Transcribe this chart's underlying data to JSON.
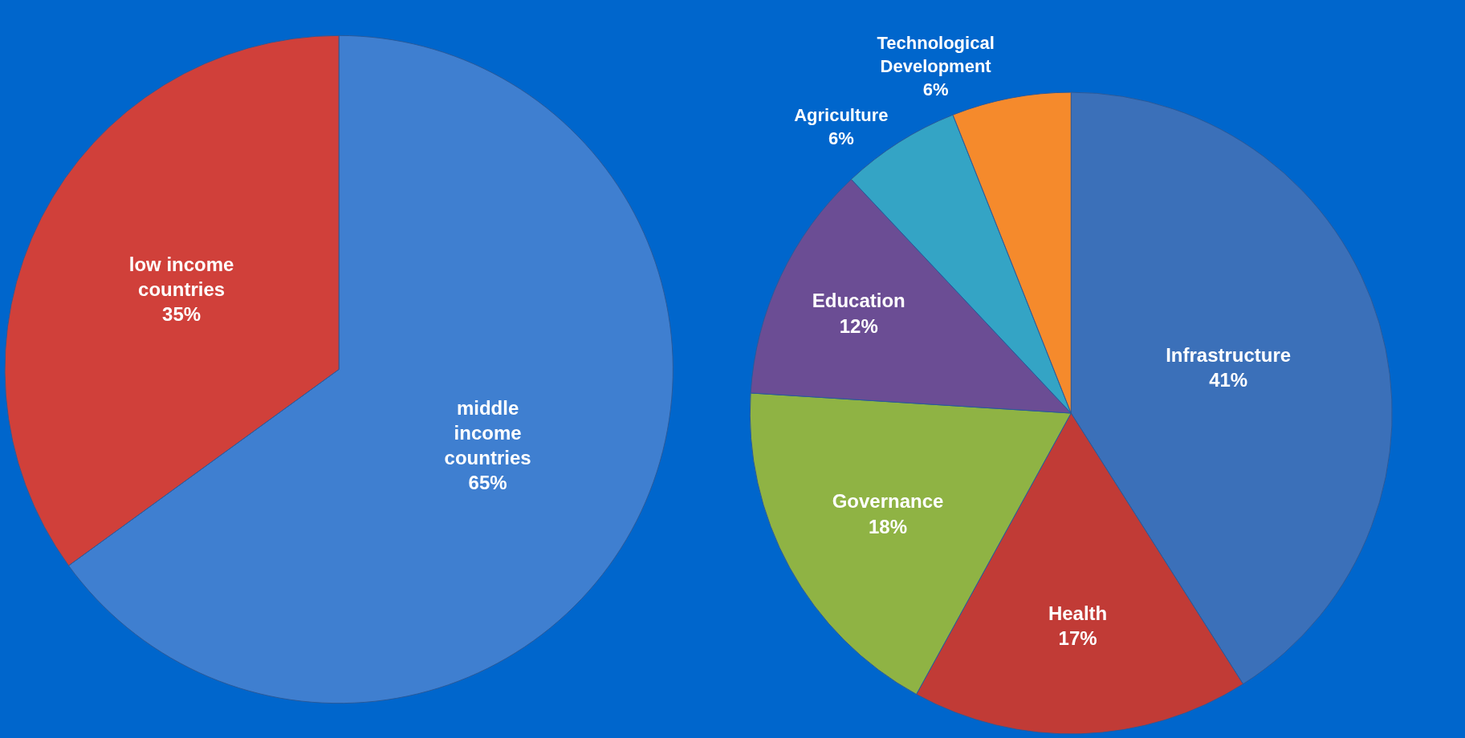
{
  "chart_data": [
    {
      "type": "pie",
      "categories": [
        "middle income countries",
        "low income countries"
      ],
      "values": [
        65,
        35
      ],
      "value_labels": [
        "65%",
        "35%"
      ],
      "colors": [
        "#3f7fd0",
        "#d0403a"
      ],
      "legend": false
    },
    {
      "type": "pie",
      "categories": [
        "Infrastructure",
        "Health",
        "Governance",
        "Education",
        "Agriculture",
        "Technological Development"
      ],
      "values": [
        41,
        17,
        18,
        12,
        6,
        6
      ],
      "value_labels": [
        "41%",
        "17%",
        "18%",
        "12%",
        "6%",
        "6%"
      ],
      "colors": [
        "#3b70b9",
        "#c13b36",
        "#8fb344",
        "#6b4d94",
        "#34a4c5",
        "#f58a2c"
      ],
      "legend": false
    }
  ]
}
